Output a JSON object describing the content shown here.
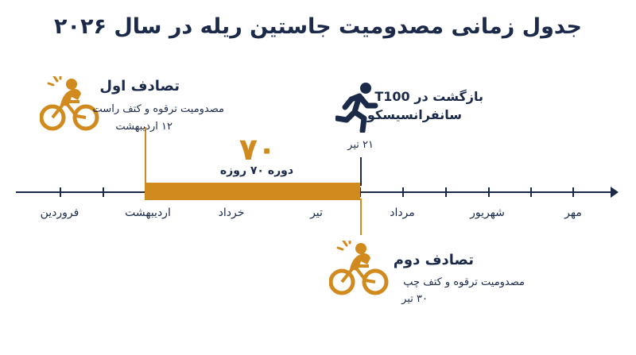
{
  "title": "جدول زمانی مصدومیت جاستین ریله در سال ۲۰۲۶",
  "colors": {
    "navy": "#1c2a4a",
    "gold": "#d08a1d"
  },
  "months": [
    "فروردین",
    "اردیبهشت",
    "خرداد",
    "تیر",
    "مرداد",
    "شهریور",
    "مهر"
  ],
  "period": {
    "days": "۷۰",
    "label": "دوره ۷۰ روزه"
  },
  "event1": {
    "icon": "cyclist-injury-icon",
    "title": "تصادف اول",
    "detail": "مصدومیت ترقوه و کتف راست",
    "date": "۱۲ اردیبهشت"
  },
  "event2": {
    "icon": "cyclist-injury-icon",
    "title": "تصادف دوم",
    "detail": "مصدومیت ترقوه و کتف چپ",
    "date": "۳۰ تیر"
  },
  "comeback": {
    "icon": "runner-icon",
    "title_line1": "بازگشت در T100",
    "title_line2": "سانفرانسیسکو",
    "date": "۲۱ تیر"
  }
}
